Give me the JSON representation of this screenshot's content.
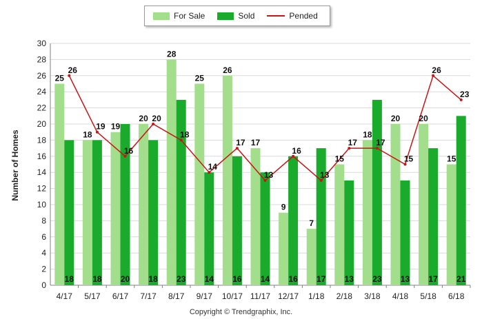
{
  "chart_data": {
    "type": "bar",
    "ylabel": "Number of Homes",
    "xlabel": "",
    "ylim": [
      0,
      30
    ],
    "yticks": [
      0,
      2,
      4,
      6,
      8,
      10,
      12,
      14,
      16,
      18,
      20,
      22,
      24,
      26,
      28,
      30
    ],
    "grid": true,
    "legend_position": "top-center",
    "categories": [
      "4/17",
      "5/17",
      "6/17",
      "7/17",
      "8/17",
      "9/17",
      "10/17",
      "11/17",
      "12/17",
      "1/18",
      "2/18",
      "3/18",
      "4/18",
      "5/18",
      "6/18"
    ],
    "series": [
      {
        "name": "For Sale",
        "kind": "bar",
        "color": "#a3de8c",
        "values": [
          25,
          18,
          19,
          20,
          28,
          25,
          26,
          17,
          9,
          7,
          15,
          18,
          20,
          20,
          15
        ]
      },
      {
        "name": "Sold",
        "kind": "bar",
        "color": "#1aab2c",
        "values": [
          18,
          18,
          20,
          18,
          23,
          14,
          16,
          14,
          16,
          17,
          13,
          23,
          13,
          17,
          21
        ]
      },
      {
        "name": "Pended",
        "kind": "line",
        "color": "#c81414",
        "values": [
          26,
          19,
          16,
          20,
          18,
          14,
          17,
          13,
          16,
          13,
          17,
          17,
          15,
          26,
          23
        ]
      }
    ]
  },
  "footer": {
    "copyright": "Copyright © Trendgraphix, Inc."
  }
}
